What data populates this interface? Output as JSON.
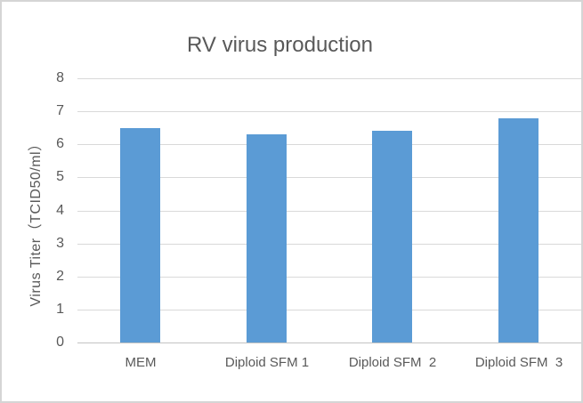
{
  "chart_data": {
    "type": "bar",
    "title": "RV virus production",
    "categories": [
      "MEM",
      "Diploid SFM 1",
      "Diploid SFM  2",
      "Diploid SFM  3"
    ],
    "values": [
      6.5,
      6.3,
      6.4,
      6.8
    ],
    "xlabel": "",
    "ylabel": "Virus Titer（TCID50/ml）",
    "ylim": [
      0,
      8
    ],
    "yticks": [
      0,
      1,
      2,
      3,
      4,
      5,
      6,
      7,
      8
    ],
    "grid": true,
    "legend_position": "none",
    "bar_color": "#5B9BD5",
    "text_color": "#595959",
    "gridline_color": "#D9D9D9",
    "axis_line_color": "#C3C3C3"
  }
}
